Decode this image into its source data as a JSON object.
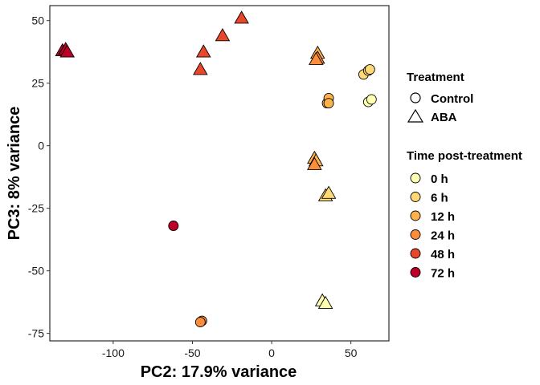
{
  "chart_data": {
    "type": "scatter",
    "title": "",
    "xlabel": "PC2: 17.9% variance",
    "ylabel": "PC3: 8% variance",
    "xlim": [
      -140,
      74
    ],
    "ylim": [
      -78,
      56
    ],
    "xticks": [
      -100,
      -50,
      0,
      50
    ],
    "yticks": [
      -75,
      -50,
      -25,
      0,
      25,
      50
    ],
    "xtick_labels": [
      "-100",
      "-50",
      "0",
      "50"
    ],
    "ytick_labels": [
      "-75",
      "-50",
      "-25",
      "0",
      "25",
      "50"
    ],
    "grid": false,
    "legend_position": "right",
    "shape_legend": {
      "title": "Treatment",
      "items": [
        {
          "label": "Control",
          "shape": "circle"
        },
        {
          "label": "ABA",
          "shape": "triangle"
        }
      ]
    },
    "color_legend": {
      "title": "Time post-treatment",
      "items": [
        {
          "label": "0 h",
          "color": "#FFFFB2"
        },
        {
          "label": "6 h",
          "color": "#FED976"
        },
        {
          "label": "12 h",
          "color": "#FEB24C"
        },
        {
          "label": "24 h",
          "color": "#FD8D3C"
        },
        {
          "label": "48 h",
          "color": "#E8472A"
        },
        {
          "label": "72 h",
          "color": "#BD0026"
        }
      ]
    },
    "points": [
      {
        "x": 61,
        "y": 17.5,
        "treatment": "Control",
        "time": "0 h"
      },
      {
        "x": 63,
        "y": 18.5,
        "treatment": "Control",
        "time": "0 h"
      },
      {
        "x": 58,
        "y": 28.5,
        "treatment": "Control",
        "time": "6 h"
      },
      {
        "x": 61,
        "y": 30,
        "treatment": "Control",
        "time": "6 h"
      },
      {
        "x": 62,
        "y": 30.5,
        "treatment": "Control",
        "time": "6 h"
      },
      {
        "x": 35,
        "y": 17,
        "treatment": "Control",
        "time": "12 h"
      },
      {
        "x": 36,
        "y": 19,
        "treatment": "Control",
        "time": "12 h"
      },
      {
        "x": 36,
        "y": 17,
        "treatment": "Control",
        "time": "12 h"
      },
      {
        "x": -44,
        "y": -70,
        "treatment": "Control",
        "time": "24 h"
      },
      {
        "x": -45,
        "y": -70.5,
        "treatment": "Control",
        "time": "24 h"
      },
      {
        "x": -62,
        "y": -32,
        "treatment": "Control",
        "time": "72 h"
      },
      {
        "x": 32,
        "y": -62,
        "treatment": "ABA",
        "time": "0 h"
      },
      {
        "x": 34,
        "y": -63,
        "treatment": "ABA",
        "time": "0 h"
      },
      {
        "x": 34,
        "y": -20,
        "treatment": "ABA",
        "time": "6 h"
      },
      {
        "x": 36,
        "y": -19,
        "treatment": "ABA",
        "time": "6 h"
      },
      {
        "x": 27,
        "y": -5,
        "treatment": "ABA",
        "time": "12 h"
      },
      {
        "x": 28,
        "y": -6,
        "treatment": "ABA",
        "time": "12 h"
      },
      {
        "x": 29,
        "y": 37,
        "treatment": "ABA",
        "time": "12 h"
      },
      {
        "x": 27,
        "y": -7.5,
        "treatment": "ABA",
        "time": "24 h"
      },
      {
        "x": 29,
        "y": 35,
        "treatment": "ABA",
        "time": "24 h"
      },
      {
        "x": 28,
        "y": 34.5,
        "treatment": "ABA",
        "time": "24 h"
      },
      {
        "x": -19,
        "y": 51,
        "treatment": "ABA",
        "time": "48 h"
      },
      {
        "x": -31,
        "y": 44,
        "treatment": "ABA",
        "time": "48 h"
      },
      {
        "x": -43,
        "y": 37.5,
        "treatment": "ABA",
        "time": "48 h"
      },
      {
        "x": -45,
        "y": 30.5,
        "treatment": "ABA",
        "time": "48 h"
      },
      {
        "x": -132,
        "y": 38,
        "treatment": "ABA",
        "time": "72 h"
      },
      {
        "x": -130,
        "y": 38.5,
        "treatment": "ABA",
        "time": "72 h"
      },
      {
        "x": -129,
        "y": 37.5,
        "treatment": "ABA",
        "time": "72 h"
      }
    ]
  }
}
